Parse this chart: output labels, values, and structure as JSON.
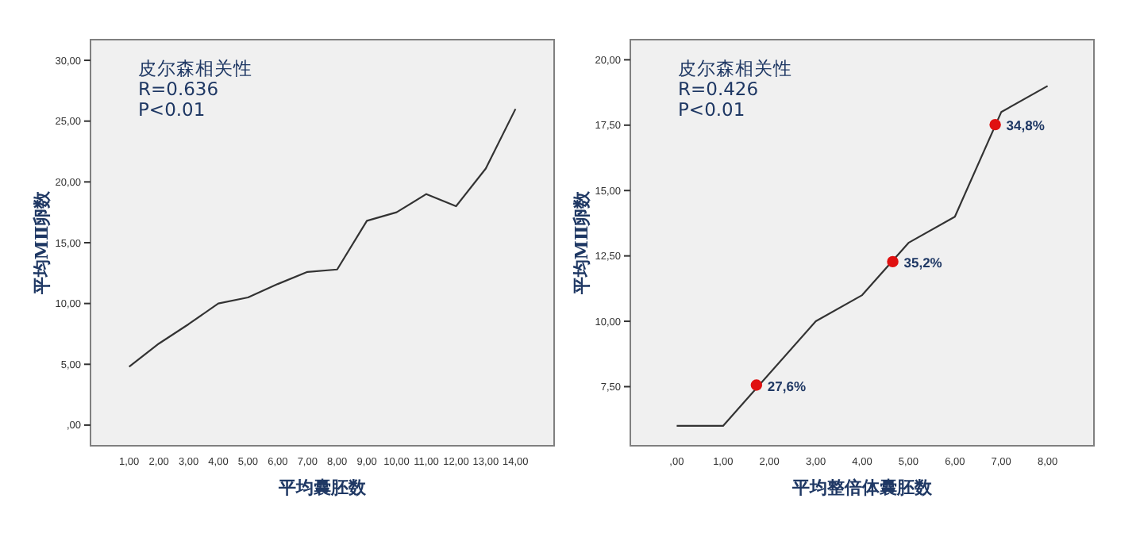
{
  "chart_data": [
    {
      "type": "line",
      "xlabel": "平均囊胚数",
      "ylabel": "平均MⅡ卵数",
      "annotations": [
        "皮尔森相关性",
        "R=0.636",
        "P<0.01"
      ],
      "xlim": [
        -0.3,
        15.3
      ],
      "ylim": [
        -1.7,
        31.7
      ],
      "xticks": [
        {
          "value": 1,
          "label": "1,00"
        },
        {
          "value": 2,
          "label": "2,00"
        },
        {
          "value": 3,
          "label": "3,00"
        },
        {
          "value": 4,
          "label": "4,00"
        },
        {
          "value": 5,
          "label": "5,00"
        },
        {
          "value": 6,
          "label": "6,00"
        },
        {
          "value": 7,
          "label": "7,00"
        },
        {
          "value": 8,
          "label": "8,00"
        },
        {
          "value": 9,
          "label": "9,00"
        },
        {
          "value": 10,
          "label": "10,00"
        },
        {
          "value": 11,
          "label": "11,00"
        },
        {
          "value": 12,
          "label": "12,00"
        },
        {
          "value": 13,
          "label": "13,00"
        },
        {
          "value": 14,
          "label": "14,00"
        }
      ],
      "yticks": [
        {
          "value": 0,
          "label": ",00"
        },
        {
          "value": 5,
          "label": "5,00"
        },
        {
          "value": 10,
          "label": "10,00"
        },
        {
          "value": 15,
          "label": "15,00"
        },
        {
          "value": 20,
          "label": "20,00"
        },
        {
          "value": 25,
          "label": "25,00"
        },
        {
          "value": 30,
          "label": "30,00"
        }
      ],
      "series": [
        {
          "color": "#333333",
          "x": [
            1,
            2,
            3,
            4,
            5,
            6,
            7,
            8,
            9,
            10,
            11,
            12,
            13,
            14
          ],
          "values": [
            4.8,
            6.7,
            8.3,
            10.0,
            10.5,
            11.6,
            12.6,
            12.8,
            16.8,
            17.5,
            19.0,
            18.0,
            21.1,
            26.0
          ]
        }
      ]
    },
    {
      "type": "line",
      "xlabel": "平均整倍体囊胚数",
      "ylabel": "平均MⅡ卵数",
      "annotations": [
        "皮尔森相关性",
        "R=0.426",
        "P<0.01",
        {
          "text": "27,6%",
          "x": 1.72,
          "y": 7.56
        },
        {
          "text": "35,2%",
          "x": 4.66,
          "y": 12.28
        },
        {
          "text": "34,8%",
          "x": 6.87,
          "y": 17.52
        }
      ],
      "xlim": [
        -1,
        9
      ],
      "ylim": [
        5.24,
        20.77
      ],
      "xticks": [
        {
          "value": 0,
          "label": ",00"
        },
        {
          "value": 1,
          "label": "1,00"
        },
        {
          "value": 2,
          "label": "2,00"
        },
        {
          "value": 3,
          "label": "3,00"
        },
        {
          "value": 4,
          "label": "4,00"
        },
        {
          "value": 5,
          "label": "5,00"
        },
        {
          "value": 6,
          "label": "6,00"
        },
        {
          "value": 7,
          "label": "7,00"
        },
        {
          "value": 8,
          "label": "8,00"
        }
      ],
      "yticks": [
        {
          "value": 7.5,
          "label": "7,50"
        },
        {
          "value": 10,
          "label": "10,00"
        },
        {
          "value": 12.5,
          "label": "12,50"
        },
        {
          "value": 15,
          "label": "15,00"
        },
        {
          "value": 17.5,
          "label": "17,50"
        },
        {
          "value": 20,
          "label": "20,00"
        }
      ],
      "series": [
        {
          "color": "#333333",
          "x": [
            0,
            1,
            3,
            4,
            5,
            6,
            7,
            8
          ],
          "values": [
            6.0,
            6.0,
            10.0,
            11.0,
            13.0,
            14.0,
            18.0,
            19.0
          ]
        },
        {
          "type": "scatter",
          "marker": "circle",
          "color": "#e01010",
          "x": [
            1.72,
            4.66,
            6.87
          ],
          "values": [
            7.56,
            12.28,
            17.52
          ]
        }
      ]
    }
  ]
}
